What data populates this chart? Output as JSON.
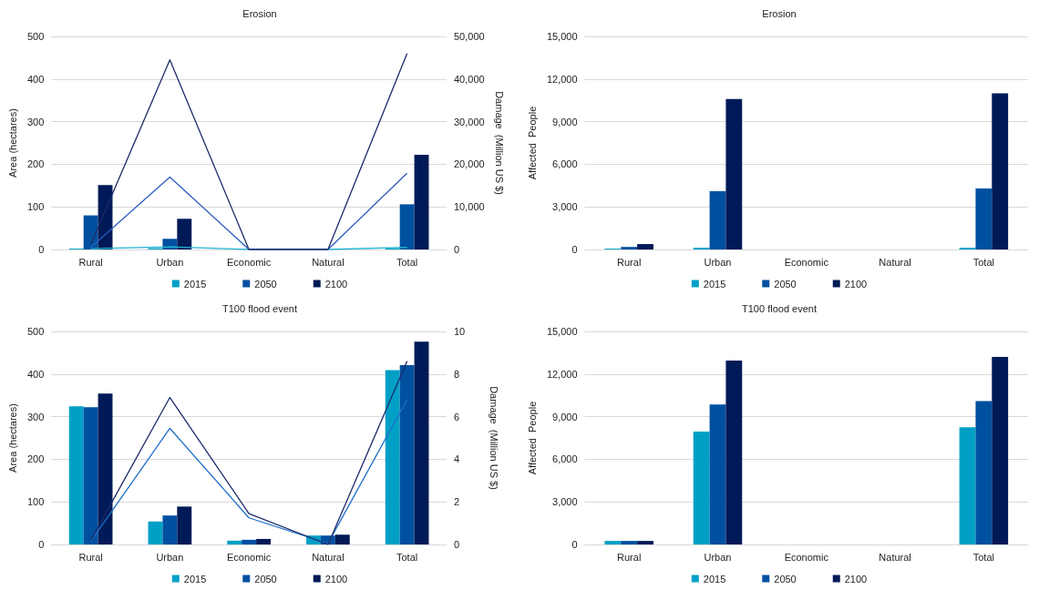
{
  "chart_data": [
    {
      "type": "bar",
      "title": "Erosion",
      "ylabel": "Area (hectares)",
      "y2label": "Damage  (Million US $)",
      "categories": [
        "Rural",
        "Urban",
        "Economic",
        "Natural",
        "Total"
      ],
      "series": [
        {
          "name": "2015",
          "color": "#00a0c6",
          "values": [
            2,
            3,
            0,
            0,
            3
          ]
        },
        {
          "name": "2050",
          "color": "#0050a0",
          "values": [
            80,
            25,
            0,
            0,
            106
          ]
        },
        {
          "name": "2100",
          "color": "#001a57",
          "values": [
            151,
            72,
            2,
            0,
            222
          ]
        },
        {
          "type": "line",
          "axis": "y2",
          "color": "#1fb6d5",
          "values": [
            200,
            600,
            0,
            0,
            500
          ]
        },
        {
          "type": "line",
          "axis": "y2",
          "color": "#2a5cc0",
          "values": [
            500,
            17000,
            0,
            0,
            17900
          ]
        },
        {
          "type": "line",
          "axis": "y2",
          "color": "#1c2a6a",
          "values": [
            1200,
            44500,
            0,
            0,
            46000
          ]
        }
      ],
      "ylim": [
        0,
        500
      ],
      "yticks": [
        0,
        100,
        200,
        300,
        400,
        500
      ],
      "y2lim": [
        0,
        50000
      ],
      "y2ticks": [
        0,
        {
          "value": 10000,
          "label": "10,000"
        },
        {
          "value": 20000,
          "label": "20,000"
        },
        {
          "value": 30000,
          "label": "30,000"
        },
        {
          "value": 40000,
          "label": "40,000"
        },
        {
          "value": 50000,
          "label": "50,000"
        }
      ],
      "grid": "y",
      "legend": "bottom",
      "marker": "none"
    },
    {
      "type": "bar",
      "title": "Erosion",
      "ylabel": "Affected  People",
      "categories": [
        "Rural",
        "Urban",
        "Economic",
        "Natural",
        "Total"
      ],
      "series": [
        {
          "name": "2015",
          "color": "#00a0c6",
          "values": [
            60,
            120,
            0,
            0,
            120
          ]
        },
        {
          "name": "2050",
          "color": "#0050a0",
          "values": [
            180,
            4100,
            0,
            0,
            4300
          ]
        },
        {
          "name": "2100",
          "color": "#001a57",
          "values": [
            380,
            10600,
            0,
            0,
            11000
          ]
        }
      ],
      "ylim": [
        0,
        15000
      ],
      "yticks": [
        0,
        {
          "value": 3000,
          "label": "3,000"
        },
        {
          "value": 6000,
          "label": "6,000"
        },
        {
          "value": 9000,
          "label": "9,000"
        },
        {
          "value": 12000,
          "label": "12,000"
        },
        {
          "value": 15000,
          "label": "15,000"
        }
      ],
      "grid": "y",
      "legend": "bottom"
    },
    {
      "type": "bar",
      "title": "T100 flood event",
      "ylabel": "Area (hectares)",
      "y2label": "Damage  (Million US $)",
      "categories": [
        "Rural",
        "Urban",
        "Economic",
        "Natural",
        "Total"
      ],
      "series": [
        {
          "name": "2015",
          "color": "#00a0c6",
          "values": [
            324,
            54,
            9,
            21,
            409
          ]
        },
        {
          "name": "2050",
          "color": "#0050a0",
          "values": [
            322,
            68,
            11,
            21,
            421
          ]
        },
        {
          "name": "2100",
          "color": "#001a57",
          "values": [
            354,
            89,
            13,
            23,
            476
          ]
        },
        {
          "type": "line",
          "axis": "y2",
          "color": "#1f6fc9",
          "values": [
            0.15,
            5.45,
            1.25,
            0.05,
            6.8
          ]
        },
        {
          "type": "line",
          "axis": "y2",
          "color": "#1c2a6a",
          "values": [
            0.2,
            6.9,
            1.45,
            0,
            8.6
          ]
        }
      ],
      "ylim": [
        0,
        500
      ],
      "yticks": [
        0,
        100,
        200,
        300,
        400,
        500
      ],
      "y2lim": [
        0,
        10
      ],
      "y2ticks": [
        0,
        2,
        4,
        6,
        8,
        10
      ],
      "grid": "y",
      "legend": "bottom",
      "marker": "none"
    },
    {
      "type": "bar",
      "title": "T100 flood event",
      "ylabel": "Affected  People",
      "categories": [
        "Rural",
        "Urban",
        "Economic",
        "Natural",
        "Total"
      ],
      "series": [
        {
          "name": "2015",
          "color": "#00a0c6",
          "values": [
            250,
            7950,
            0,
            0,
            8250
          ]
        },
        {
          "name": "2050",
          "color": "#0050a0",
          "values": [
            250,
            9850,
            0,
            0,
            10100
          ]
        },
        {
          "name": "2100",
          "color": "#001a57",
          "values": [
            250,
            12950,
            0,
            0,
            13200
          ]
        }
      ],
      "ylim": [
        0,
        15000
      ],
      "yticks": [
        0,
        {
          "value": 3000,
          "label": "3,000"
        },
        {
          "value": 6000,
          "label": "6,000"
        },
        {
          "value": 9000,
          "label": "9,000"
        },
        {
          "value": 12000,
          "label": "12,000"
        },
        {
          "value": 15000,
          "label": "15,000"
        }
      ],
      "grid": "y",
      "legend": "bottom"
    }
  ]
}
